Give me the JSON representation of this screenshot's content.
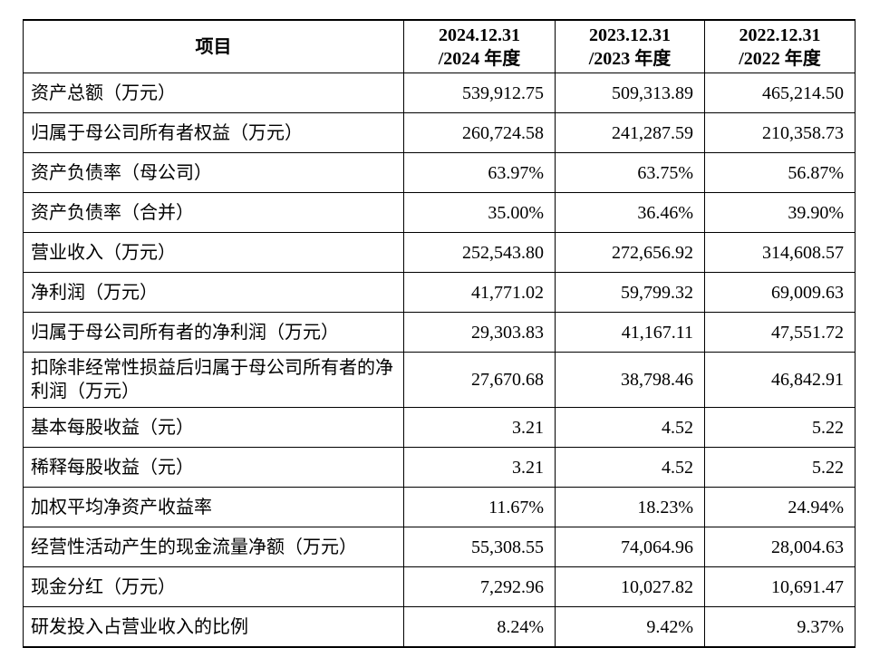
{
  "table": {
    "headers": [
      {
        "line1": "项目",
        "line2": ""
      },
      {
        "line1": "2024.12.31",
        "line2": "/2024 年度"
      },
      {
        "line1": "2023.12.31",
        "line2": "/2023 年度"
      },
      {
        "line1": "2022.12.31",
        "line2": "/2022 年度"
      }
    ],
    "rows": [
      {
        "label": "资产总额（万元）",
        "values": [
          "539,912.75",
          "509,313.89",
          "465,214.50"
        ]
      },
      {
        "label": "归属于母公司所有者权益（万元）",
        "values": [
          "260,724.58",
          "241,287.59",
          "210,358.73"
        ]
      },
      {
        "label": "资产负债率（母公司）",
        "values": [
          "63.97%",
          "63.75%",
          "56.87%"
        ]
      },
      {
        "label": "资产负债率（合并）",
        "values": [
          "35.00%",
          "36.46%",
          "39.90%"
        ]
      },
      {
        "label": "营业收入（万元）",
        "values": [
          "252,543.80",
          "272,656.92",
          "314,608.57"
        ]
      },
      {
        "label": "净利润（万元）",
        "values": [
          "41,771.02",
          "59,799.32",
          "69,009.63"
        ]
      },
      {
        "label": "归属于母公司所有者的净利润（万元）",
        "values": [
          "29,303.83",
          "41,167.11",
          "47,551.72"
        ]
      },
      {
        "label": "扣除非经常性损益后归属于母公司所有者的净利润（万元）",
        "values": [
          "27,670.68",
          "38,798.46",
          "46,842.91"
        ]
      },
      {
        "label": "基本每股收益（元）",
        "values": [
          "3.21",
          "4.52",
          "5.22"
        ]
      },
      {
        "label": "稀释每股收益（元）",
        "values": [
          "3.21",
          "4.52",
          "5.22"
        ]
      },
      {
        "label": "加权平均净资产收益率",
        "values": [
          "11.67%",
          "18.23%",
          "24.94%"
        ]
      },
      {
        "label": "经营性活动产生的现金流量净额（万元）",
        "values": [
          "55,308.55",
          "74,064.96",
          "28,004.63"
        ]
      },
      {
        "label": "现金分红（万元）",
        "values": [
          "7,292.96",
          "10,027.82",
          "10,691.47"
        ]
      },
      {
        "label": "研发投入占营业收入的比例",
        "values": [
          "8.24%",
          "9.42%",
          "9.37%"
        ]
      }
    ]
  }
}
